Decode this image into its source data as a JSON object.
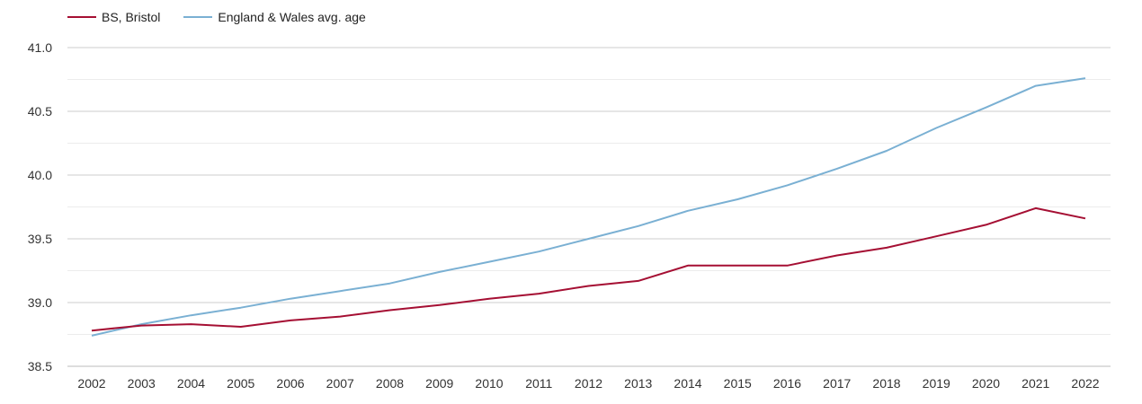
{
  "chart_data": {
    "type": "line",
    "title": "",
    "xlabel": "",
    "ylabel": "",
    "x": [
      "2002",
      "2003",
      "2004",
      "2005",
      "2006",
      "2007",
      "2008",
      "2009",
      "2010",
      "2011",
      "2012",
      "2013",
      "2014",
      "2015",
      "2016",
      "2017",
      "2018",
      "2019",
      "2020",
      "2021",
      "2022"
    ],
    "ylim": [
      38.5,
      41.0
    ],
    "yticks": [
      "38.5",
      "39.0",
      "39.5",
      "40.0",
      "40.5",
      "41.0"
    ],
    "grid": true,
    "legend_position": "top-left",
    "series": [
      {
        "name": "BS, Bristol",
        "color": "#a50f33",
        "values": [
          38.78,
          38.82,
          38.83,
          38.81,
          38.86,
          38.89,
          38.94,
          38.98,
          39.03,
          39.07,
          39.13,
          39.17,
          39.29,
          39.29,
          39.29,
          39.37,
          39.43,
          39.52,
          39.61,
          39.74,
          39.66
        ]
      },
      {
        "name": "England & Wales avg. age",
        "color": "#7ab0d3",
        "values": [
          38.74,
          38.83,
          38.9,
          38.96,
          39.03,
          39.09,
          39.15,
          39.24,
          39.32,
          39.4,
          39.5,
          39.6,
          39.72,
          39.81,
          39.92,
          40.05,
          40.19,
          40.37,
          40.53,
          40.7,
          40.76
        ]
      }
    ]
  }
}
